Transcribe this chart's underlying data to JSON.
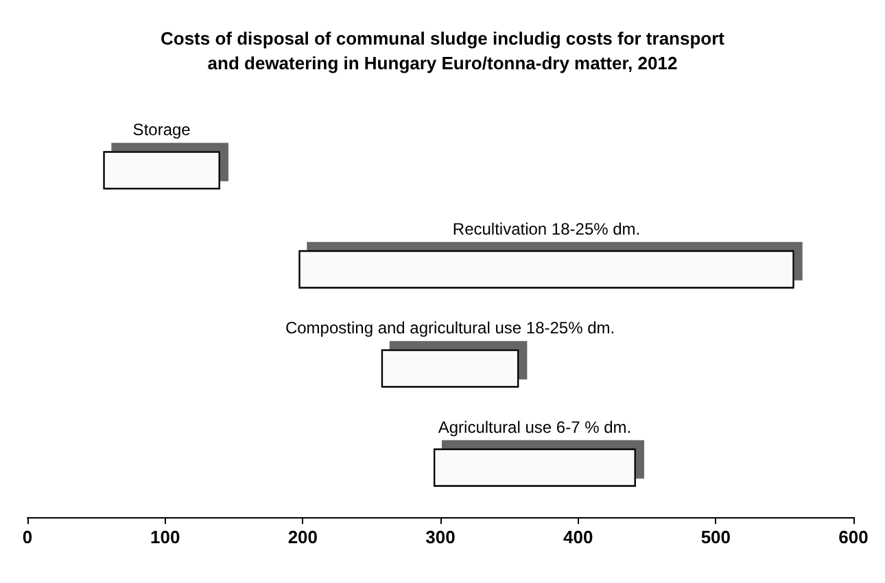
{
  "chart_data": {
    "type": "bar",
    "orientation": "horizontal",
    "title": "Costs of disposal of communal sludge includig costs for transport\nand dewatering in Hungary Euro/tonna-dry matter, 2012",
    "categories": [
      "Storage",
      "Recultivation 18-25% dm.",
      "Composting and agricultural use 18-25% dm.",
      "Agricultural use 6-7 % dm."
    ],
    "base": [
      55,
      197,
      257,
      295
    ],
    "values": [
      85,
      360,
      100,
      147
    ],
    "color": "#fafafa",
    "xlim": [
      0,
      600
    ],
    "xticks": [
      0,
      100,
      200,
      300,
      400,
      500,
      600
    ],
    "tick_labels": "x",
    "grid": false
  }
}
